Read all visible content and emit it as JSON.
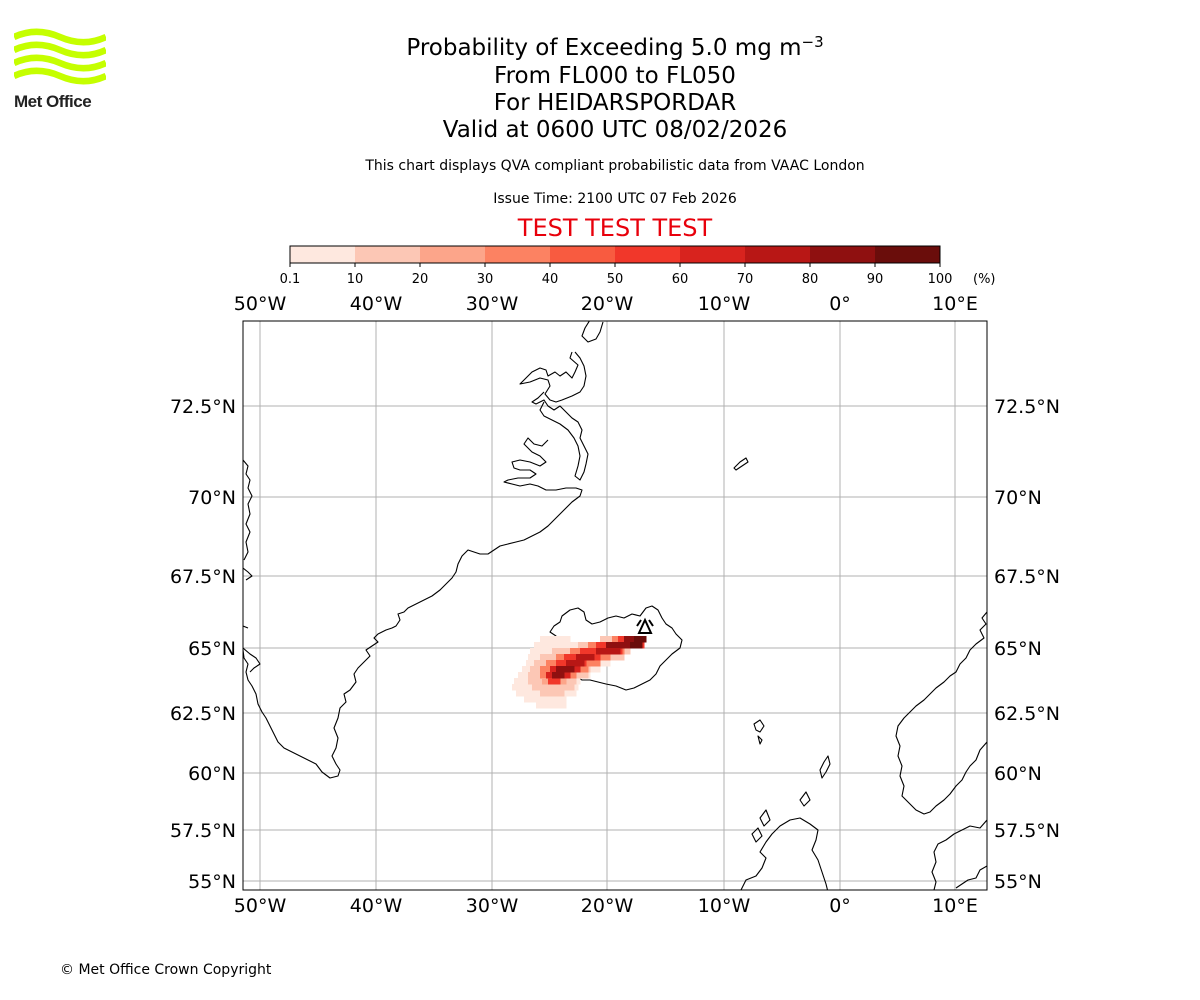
{
  "logo": {
    "text": "Met Office",
    "color": "#c5ff00"
  },
  "header": {
    "title_prefix": "Probability of Exceeding 5.0 mg m",
    "title_exponent": "−3",
    "line2": "From FL000 to FL050",
    "line3": "For HEIDARSPORDAR",
    "line4": "Valid at 0600 UTC 08/02/2026",
    "description": "This chart displays QVA compliant probabilistic data from VAAC London",
    "issue_time": "Issue Time: 2100 UTC 07 Feb 2026",
    "test_banner": "TEST TEST TEST",
    "test_color": "#e8000b"
  },
  "colorbar": {
    "ticks": [
      "0.1",
      "10",
      "20",
      "30",
      "40",
      "50",
      "60",
      "70",
      "80",
      "90",
      "100"
    ],
    "unit": "(%)",
    "colors": [
      "#fee8df",
      "#fcc7b5",
      "#fca58a",
      "#fc8262",
      "#f85b40",
      "#f1372a",
      "#d8231e",
      "#b81715",
      "#8f1010",
      "#6a0d0b"
    ]
  },
  "map": {
    "lon_labels": [
      "50°W",
      "40°W",
      "30°W",
      "20°W",
      "10°W",
      "0°",
      "10°E"
    ],
    "lat_labels": [
      "72.5°N",
      "70°N",
      "67.5°N",
      "65°N",
      "62.5°N",
      "60°N",
      "57.5°N",
      "55°N"
    ],
    "volcano_marker_icon": "volcano-triangle-icon"
  },
  "footer": {
    "copyright": "© Met Office Crown Copyright"
  }
}
